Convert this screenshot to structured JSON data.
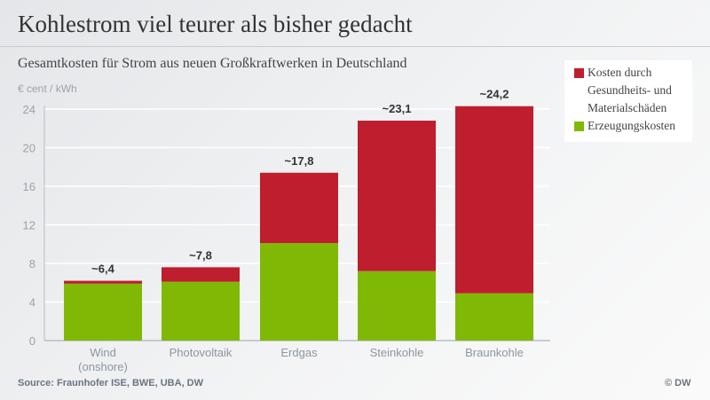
{
  "title": "Kohlestrom viel teurer als bisher gedacht",
  "subtitle": "Gesamtkosten für Strom aus neuen Großkraftwerken in Deutschland",
  "source": "Source: Fraunhofer ISE, BWE, UBA, DW",
  "copyright": "© DW",
  "chart_data": {
    "type": "bar",
    "stacked": true,
    "ylabel": "€ cent / kWh",
    "ylim": [
      0,
      24
    ],
    "yticks": [
      "0",
      "4",
      "8",
      "12",
      "16",
      "20",
      "24"
    ],
    "grid": true,
    "legend_position": "top-right",
    "categories": [
      [
        "Wind",
        "(onshore)"
      ],
      [
        "Photovoltaik"
      ],
      [
        "Erdgas"
      ],
      [
        "Steinkohle"
      ],
      [
        "Braunkohle"
      ]
    ],
    "totals_labels": [
      "~6,4",
      "~7,8",
      "~17,8",
      "~23,1",
      "~24,2"
    ],
    "series": [
      {
        "name": "Erzeugungskosten",
        "color": "#80b905",
        "values": [
          5.9,
          6.1,
          10.1,
          7.2,
          4.9
        ]
      },
      {
        "name": "Kosten durch Gesundheits- und Materialschäden",
        "legend_lines": [
          "Kosten durch",
          "Gesundheits- und",
          "Materialschäden"
        ],
        "color": "#be1e2d",
        "values": [
          0.3,
          1.5,
          7.3,
          15.6,
          19.4
        ]
      }
    ]
  }
}
